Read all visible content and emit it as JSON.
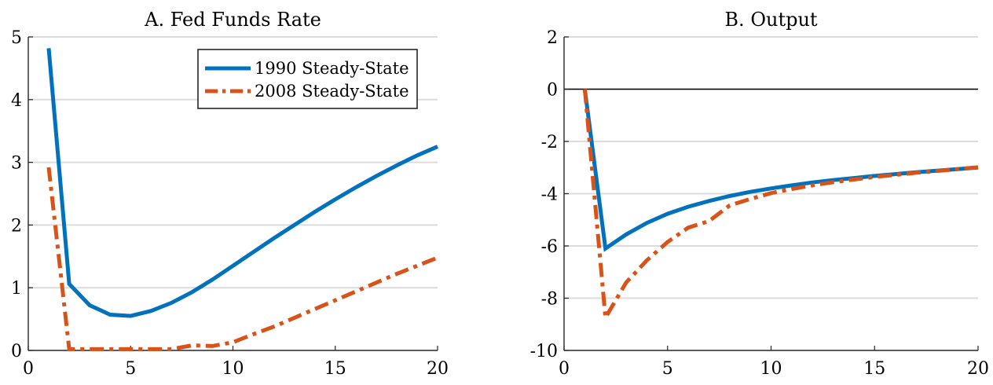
{
  "chart_data": [
    {
      "type": "line",
      "title": "A. Fed Funds Rate",
      "xlabel": "",
      "ylabel": "",
      "xlim": [
        0,
        20
      ],
      "ylim": [
        0,
        5
      ],
      "xticks": [
        0,
        5,
        10,
        15,
        20
      ],
      "yticks": [
        0,
        1,
        2,
        3,
        4,
        5
      ],
      "grid": "horizontal",
      "legend": {
        "placement": "top-right"
      },
      "series": [
        {
          "name": "1990 Steady-State",
          "color": "#0072BD",
          "style": "solid",
          "x": [
            1,
            2,
            3,
            4,
            5,
            6,
            7,
            8,
            9,
            10,
            11,
            12,
            13,
            14,
            15,
            16,
            17,
            18,
            19,
            20
          ],
          "values": [
            4.82,
            1.06,
            0.72,
            0.57,
            0.55,
            0.63,
            0.76,
            0.93,
            1.13,
            1.35,
            1.57,
            1.79,
            2.0,
            2.21,
            2.41,
            2.6,
            2.78,
            2.95,
            3.11,
            3.25
          ]
        },
        {
          "name": "2008 Steady-State",
          "color": "#D95319",
          "style": "dashdot",
          "x": [
            1,
            2,
            3,
            4,
            5,
            6,
            7,
            8,
            9,
            10,
            11,
            12,
            13,
            14,
            15,
            16,
            17,
            18,
            19,
            20
          ],
          "values": [
            2.92,
            0.02,
            0.02,
            0.02,
            0.02,
            0.02,
            0.02,
            0.08,
            0.07,
            0.13,
            0.26,
            0.38,
            0.52,
            0.66,
            0.8,
            0.94,
            1.08,
            1.22,
            1.35,
            1.48
          ]
        }
      ]
    },
    {
      "type": "line",
      "title": "B. Output",
      "xlabel": "",
      "ylabel": "",
      "xlim": [
        0,
        20
      ],
      "ylim": [
        -10,
        2
      ],
      "xticks": [
        0,
        5,
        10,
        15,
        20
      ],
      "yticks": [
        -10,
        -8,
        -6,
        -4,
        -2,
        0,
        2
      ],
      "grid": "horizontal",
      "zero_line": true,
      "series": [
        {
          "name": "1990 Steady-State",
          "color": "#0072BD",
          "style": "solid",
          "x": [
            1,
            2,
            3,
            4,
            5,
            6,
            7,
            8,
            9,
            10,
            11,
            12,
            13,
            14,
            15,
            16,
            17,
            18,
            19,
            20
          ],
          "values": [
            0,
            -6.1,
            -5.56,
            -5.12,
            -4.77,
            -4.5,
            -4.28,
            -4.09,
            -3.93,
            -3.8,
            -3.68,
            -3.57,
            -3.48,
            -3.4,
            -3.32,
            -3.25,
            -3.18,
            -3.12,
            -3.06,
            -3.0
          ]
        },
        {
          "name": "2008 Steady-State",
          "color": "#D95319",
          "style": "dashdot",
          "x": [
            1,
            2,
            3,
            4,
            5,
            6,
            7,
            8,
            9,
            10,
            11,
            12,
            13,
            14,
            15,
            16,
            17,
            18,
            19,
            20
          ],
          "values": [
            0,
            -8.75,
            -7.4,
            -6.55,
            -5.85,
            -5.3,
            -5.05,
            -4.45,
            -4.2,
            -3.98,
            -3.82,
            -3.68,
            -3.56,
            -3.46,
            -3.36,
            -3.28,
            -3.2,
            -3.13,
            -3.06,
            -2.99
          ]
        }
      ]
    }
  ]
}
